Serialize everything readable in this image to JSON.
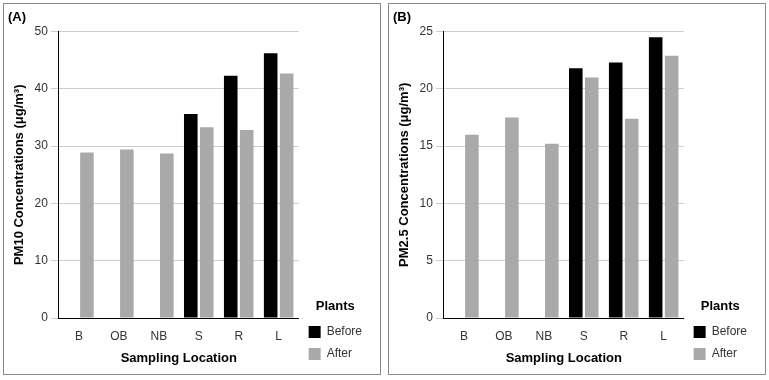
{
  "chart_data": [
    {
      "type": "bar",
      "title": "(A)",
      "x_label": "Sampling Location",
      "y_label": "PM10 Concentrations (μg/m³)",
      "categories": [
        "B",
        "OB",
        "NB",
        "S",
        "R",
        "L"
      ],
      "series": [
        {
          "name": "Before",
          "color": "#000000",
          "values": [
            null,
            null,
            null,
            35.6,
            42.3,
            46.2
          ]
        },
        {
          "name": "After",
          "color": "#a9a9a9",
          "values": [
            28.9,
            29.4,
            28.7,
            33.3,
            32.8,
            42.7
          ]
        }
      ],
      "ylim": [
        0,
        50
      ],
      "yticks": [
        0,
        10,
        20,
        30,
        40,
        50
      ],
      "grid": true,
      "legend": "right",
      "legend_title": "Plants"
    },
    {
      "type": "bar",
      "title": "(B)",
      "x_label": "Sampling Location",
      "y_label": "PM2.5 Concentrations (μg/m³)",
      "categories": [
        "B",
        "OB",
        "NB",
        "S",
        "R",
        "L"
      ],
      "series": [
        {
          "name": "Before",
          "color": "#000000",
          "values": [
            null,
            null,
            null,
            21.8,
            22.3,
            24.5
          ]
        },
        {
          "name": "After",
          "color": "#a9a9a9",
          "values": [
            16.0,
            17.5,
            15.2,
            21.0,
            17.4,
            22.9
          ]
        }
      ],
      "ylim": [
        0,
        25
      ],
      "yticks": [
        0,
        5,
        10,
        15,
        20,
        25
      ],
      "grid": true,
      "legend": "right",
      "legend_title": "Plants"
    }
  ]
}
